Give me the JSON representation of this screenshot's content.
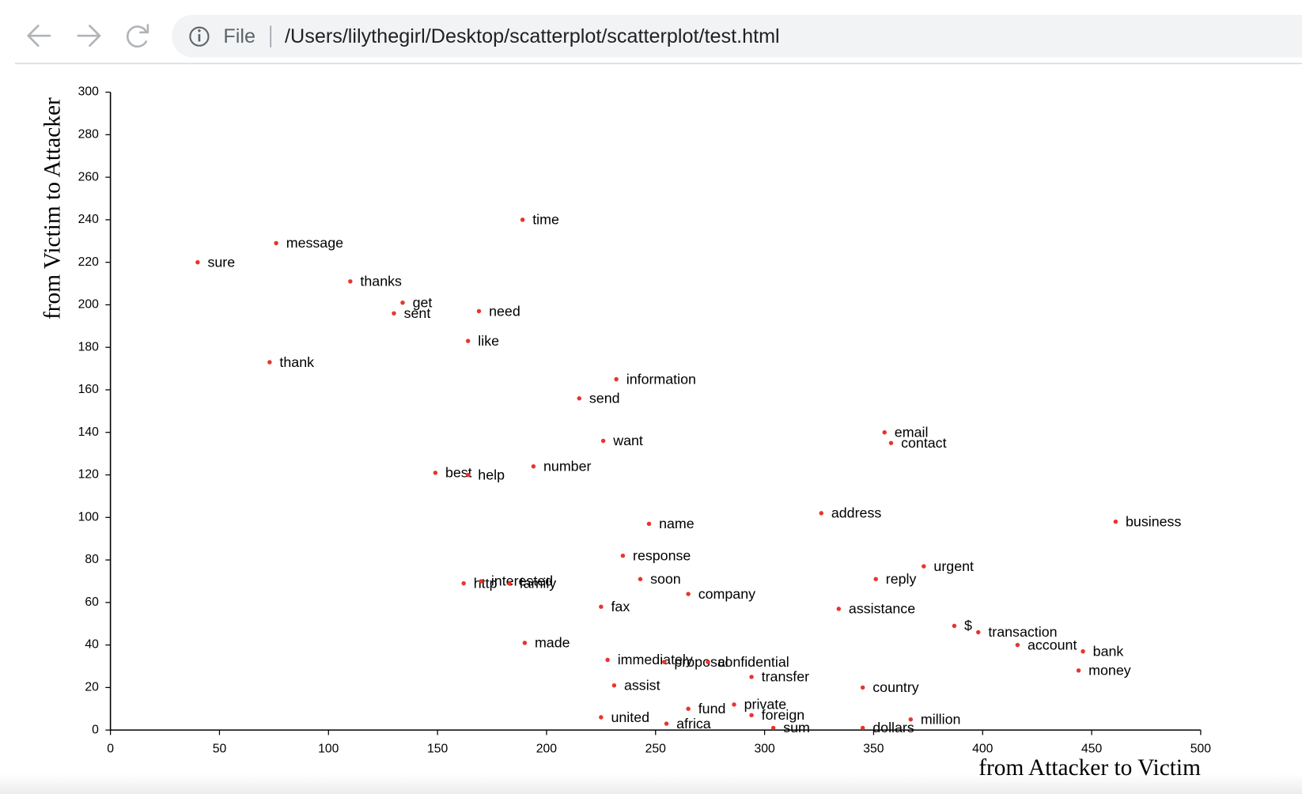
{
  "browser": {
    "security_label": "File",
    "url": "/Users/lilythegirl/Desktop/scatterplot/scatterplot/test.html"
  },
  "chart_data": {
    "type": "scatter",
    "x_label": "from Attacker to Victim",
    "y_label": "from Victim to Attacker",
    "color": "#e8352c",
    "labels": [
      "time",
      "message",
      "sure",
      "thanks",
      "get",
      "sent",
      "need",
      "like",
      "thank",
      "information",
      "send",
      "want",
      "email",
      "contact",
      "number",
      "best",
      "help",
      "address",
      "business",
      "name",
      "response",
      "urgent",
      "soon",
      "reply",
      "http",
      "interested",
      "family",
      "company",
      "fax",
      "assistance",
      "$",
      "transaction",
      "made",
      "account",
      "bank",
      "immediately",
      "proposal",
      "confidential",
      "money",
      "transfer",
      "assist",
      "country",
      "private",
      "fund",
      "united",
      "foreign",
      "million",
      "africa",
      "sum",
      "dollars"
    ],
    "x": [
      189,
      76,
      40,
      110,
      134,
      130,
      169,
      164,
      73,
      232,
      215,
      226,
      355,
      358,
      194,
      149,
      164,
      326,
      461,
      247,
      235,
      373,
      243,
      351,
      162,
      170,
      183,
      265,
      225,
      334,
      387,
      398,
      190,
      416,
      446,
      228,
      254,
      274,
      444,
      294,
      231,
      345,
      286,
      265,
      225,
      294,
      367,
      255,
      304,
      345
    ],
    "y": [
      240,
      229,
      220,
      211,
      201,
      196,
      197,
      183,
      173,
      165,
      156,
      136,
      140,
      135,
      124,
      121,
      120,
      102,
      98,
      97,
      82,
      77,
      71,
      71,
      69,
      70,
      69,
      64,
      58,
      57,
      49,
      46,
      41,
      40,
      37,
      33,
      32,
      32,
      28,
      25,
      21,
      20,
      12,
      10,
      6,
      7,
      5,
      3,
      1,
      1
    ],
    "xlim": [
      0,
      500
    ],
    "ylim": [
      0,
      300
    ],
    "xticks": [
      0,
      50,
      100,
      150,
      200,
      250,
      300,
      350,
      400,
      450,
      500
    ],
    "yticks": [
      0,
      20,
      40,
      60,
      80,
      100,
      120,
      140,
      160,
      180,
      200,
      220,
      240,
      260,
      280,
      300
    ]
  }
}
